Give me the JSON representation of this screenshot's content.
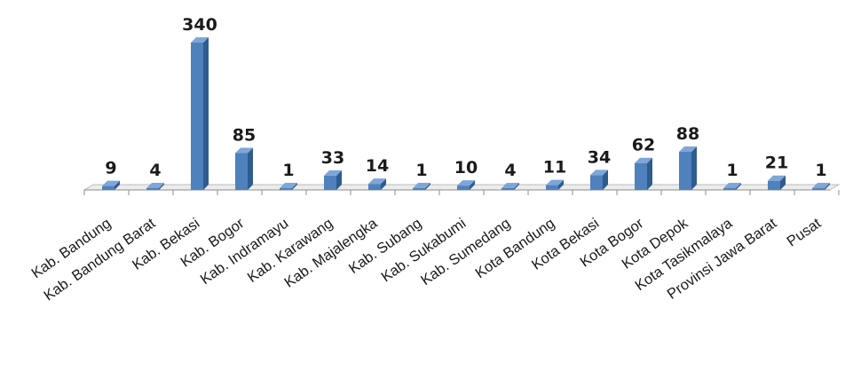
{
  "chart_data": {
    "type": "bar",
    "title": "",
    "xlabel": "",
    "ylabel": "",
    "ylim": [
      0,
      340
    ],
    "grid": false,
    "legend": "none",
    "style": "3d-column",
    "colors": {
      "front": "#4F81BD",
      "side": "#2F5C8F",
      "top": "#7FA6D8",
      "floor": "#ECECEC",
      "axis": "#8C8C8C"
    },
    "categories": [
      "Kab. Bandung",
      "Kab. Bandung Barat",
      "Kab. Bekasi",
      "Kab. Bogor",
      "Kab. Indramayu",
      "Kab. Karawang",
      "Kab. Majalengka",
      "Kab. Subang",
      "Kab. Sukabumi",
      "Kab. Sumedang",
      "Kota Bandung",
      "Kota Bekasi",
      "Kota Bogor",
      "Kota Depok",
      "Kota Tasikmalaya",
      "Provinsi Jawa Barat",
      "Pusat"
    ],
    "values": [
      9,
      4,
      340,
      85,
      1,
      33,
      14,
      1,
      10,
      4,
      11,
      34,
      62,
      88,
      1,
      21,
      1
    ]
  }
}
